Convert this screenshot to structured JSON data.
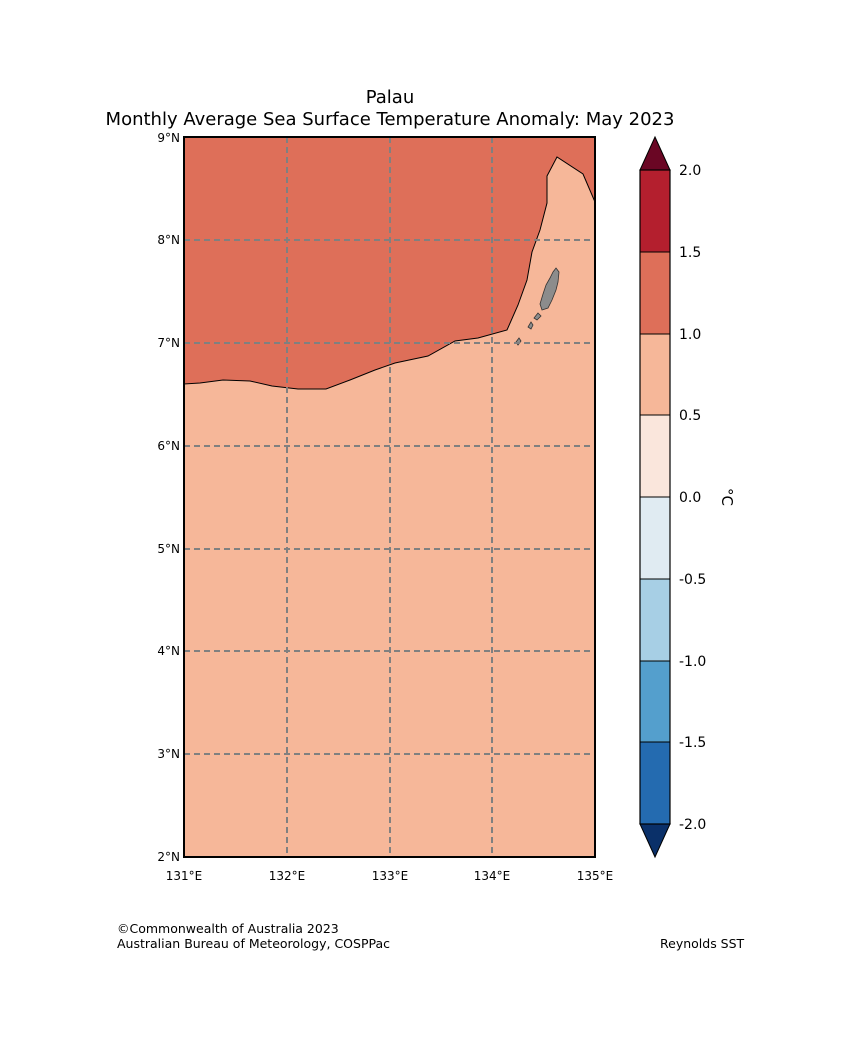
{
  "title": {
    "line1": "Palau",
    "line2": "Monthly Average Sea Surface Temperature Anomaly: May 2023"
  },
  "map": {
    "lat_labels": [
      "9°N",
      "8°N",
      "7°N",
      "6°N",
      "5°N",
      "4°N",
      "3°N",
      "2°N"
    ],
    "lon_labels": [
      "131°E",
      "132°E",
      "133°E",
      "134°E",
      "135°E"
    ],
    "regions": [
      {
        "name": "north",
        "anomaly_range": "1.0 to 1.5",
        "color": "#de6f59"
      },
      {
        "name": "south",
        "anomaly_range": "0.5 to 1.0",
        "color": "#f6b799"
      }
    ],
    "land_color": "#8c8c8c",
    "grid_color": "#808080"
  },
  "colorbar": {
    "unit_label": "°C",
    "tick_labels": [
      "2.0",
      "1.5",
      "1.0",
      "0.5",
      "0.0",
      "-0.5",
      "-1.0",
      "-1.5",
      "-2.0"
    ],
    "colors": [
      "#6a0624",
      "#b41f2e",
      "#de6f59",
      "#f6b799",
      "#fae6dc",
      "#e0ebf2",
      "#a7cfe5",
      "#549fcd",
      "#246bb0",
      "#0a3069"
    ]
  },
  "footer": {
    "copyright": "©Commonwealth of Australia 2023",
    "agency": "Australian Bureau of Meteorology, COSPPac",
    "source": "Reynolds SST"
  }
}
